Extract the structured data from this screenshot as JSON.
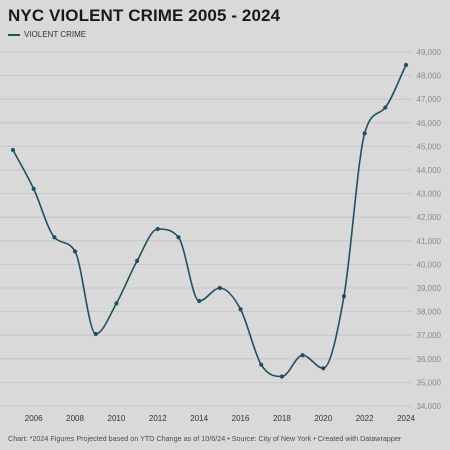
{
  "chart_data": {
    "type": "line",
    "title": "NYC VIOLENT CRIME 2005 - 2024",
    "xlabel": "",
    "ylabel": "",
    "series": [
      {
        "name": "VIOLENT CRIME",
        "color": "#1f5062",
        "x": [
          2005,
          2006,
          2007,
          2008,
          2009,
          2010,
          2011,
          2012,
          2013,
          2014,
          2015,
          2016,
          2017,
          2018,
          2019,
          2020,
          2021,
          2022,
          2023,
          2024
        ],
        "y": [
          44850,
          43200,
          41150,
          40550,
          37050,
          38350,
          40150,
          41500,
          41150,
          38450,
          39000,
          38100,
          35750,
          35250,
          36150,
          35600,
          38650,
          45550,
          46650,
          48450
        ]
      }
    ],
    "xlim": [
      2005,
      2024
    ],
    "ylim": [
      34000,
      49000
    ],
    "x_ticks": [
      2006,
      2008,
      2010,
      2012,
      2014,
      2016,
      2018,
      2020,
      2022,
      2024
    ],
    "x_tick_labels": [
      "2006",
      "2008",
      "2010",
      "2012",
      "2014",
      "2016",
      "2018",
      "2020",
      "2022",
      "2024"
    ],
    "y_ticks": [
      34000,
      35000,
      36000,
      37000,
      38000,
      39000,
      40000,
      41000,
      42000,
      43000,
      44000,
      45000,
      46000,
      47000,
      48000,
      49000
    ],
    "y_tick_labels": [
      "34,000",
      "35,000",
      "36,000",
      "37,000",
      "38,000",
      "39,000",
      "40,000",
      "41,000",
      "42,000",
      "43,000",
      "44,000",
      "45,000",
      "46,000",
      "47,000",
      "48,000",
      "49,000"
    ],
    "grid": true,
    "legend": "top-left",
    "footer": "Chart: *2024 Figures Projected based on YTD Change as of 10/6/24 • Source: City of New York • Created with Datawrapper"
  }
}
